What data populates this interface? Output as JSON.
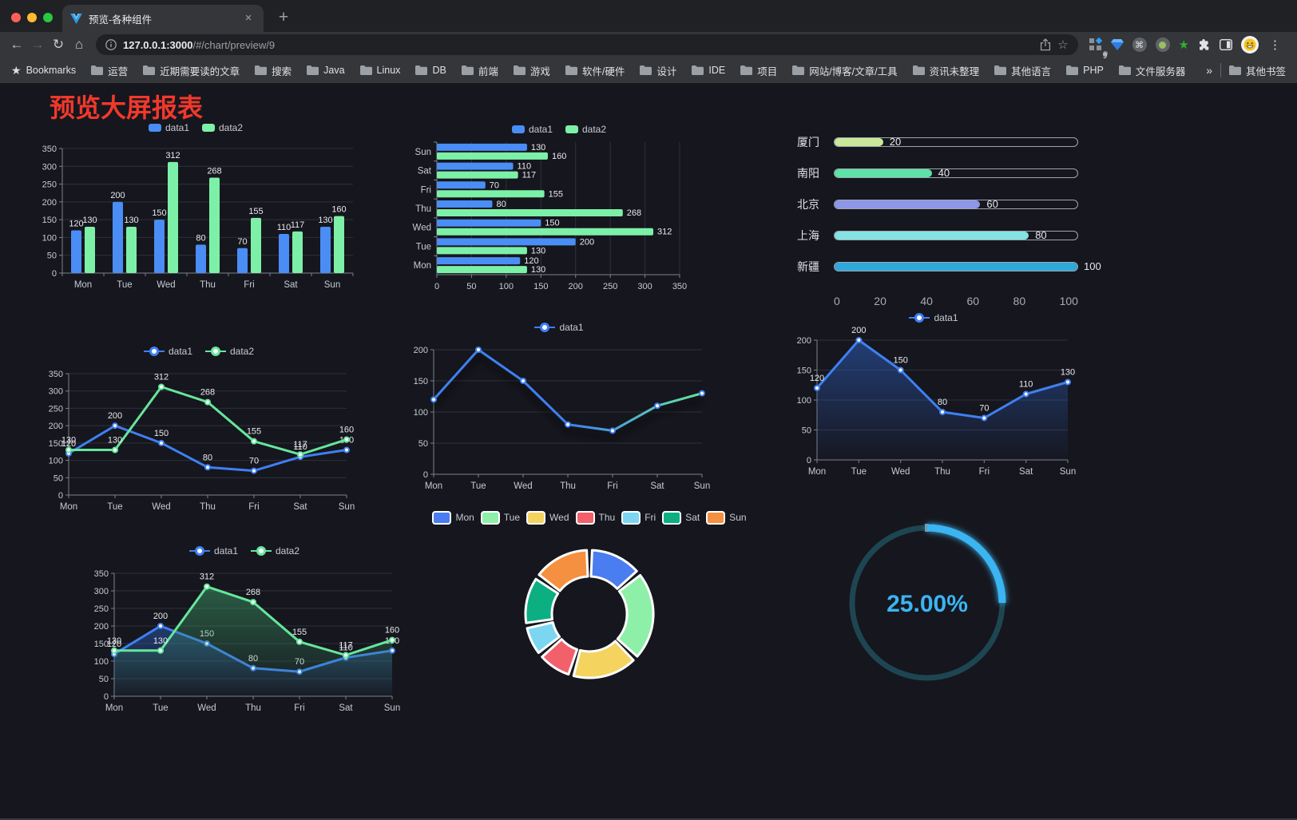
{
  "browser": {
    "traffic_lights": {
      "close": "#ff5f57",
      "minimize": "#febc2e",
      "zoom": "#28c840"
    },
    "tab": {
      "title": "预览-各种组件",
      "close_glyph": "×",
      "new_tab_glyph": "+"
    },
    "nav": {
      "back": "←",
      "forward": "→",
      "reload": "↻",
      "home": "⌂"
    },
    "omnibox": {
      "host": "127.0.0.1:3000",
      "path": "/#/chart/preview/9",
      "bookmark_star": "☆"
    },
    "extensions_badge": "9",
    "menu_glyph": "⋮",
    "command_glyph": "⌘",
    "green_star_glyph": "★",
    "bookmarks": {
      "label": "Bookmarks",
      "star_glyph": "★",
      "folders": [
        "运营",
        "近期需要读的文章",
        "搜索",
        "Java",
        "Linux",
        "DB",
        "前端",
        "游戏",
        "软件/硬件",
        "设计",
        "IDE",
        "项目",
        "网站/博客/文章/工具",
        "资讯未整理",
        "其他语言",
        "PHP",
        "文件服务器"
      ],
      "overflow_glyph": "»",
      "other_label": "其他书签"
    }
  },
  "page": {
    "title": "预览大屏报表"
  },
  "chart_data": [
    {
      "id": "bar-grouped",
      "type": "bar",
      "legend_position": "top",
      "categories": [
        "Mon",
        "Tue",
        "Wed",
        "Thu",
        "Fri",
        "Sat",
        "Sun"
      ],
      "series": [
        {
          "name": "data1",
          "color": "#4a8df5",
          "values": [
            120,
            200,
            150,
            80,
            70,
            110,
            130
          ]
        },
        {
          "name": "data2",
          "color": "#7df0a8",
          "values": [
            130,
            130,
            312,
            268,
            155,
            117,
            160
          ]
        }
      ],
      "ylim": [
        0,
        350
      ],
      "yticks": [
        0,
        50,
        100,
        150,
        200,
        250,
        300,
        350
      ],
      "value_labels": true,
      "grid": "horizontal"
    },
    {
      "id": "bar-horizontal",
      "type": "hbar",
      "legend_position": "top",
      "categories_top_to_bottom": [
        "Sun",
        "Sat",
        "Fri",
        "Thu",
        "Wed",
        "Tue",
        "Mon"
      ],
      "series": [
        {
          "name": "data1",
          "color": "#4a8df5",
          "values_top_to_bottom": [
            130,
            110,
            70,
            80,
            150,
            200,
            120
          ]
        },
        {
          "name": "data2",
          "color": "#7df0a8",
          "values_top_to_bottom": [
            160,
            117,
            155,
            268,
            312,
            130,
            130
          ]
        }
      ],
      "xlim": [
        0,
        350
      ],
      "xticks": [
        0,
        50,
        100,
        150,
        200,
        250,
        300,
        350
      ],
      "value_labels": true,
      "grid": "vertical"
    },
    {
      "id": "progress-bars",
      "type": "progress",
      "max": 100,
      "xticks": [
        0,
        20,
        40,
        60,
        80,
        100
      ],
      "items": [
        {
          "label": "厦门",
          "value": 20,
          "color": "#c9e89a"
        },
        {
          "label": "南阳",
          "value": 40,
          "color": "#5de3a6"
        },
        {
          "label": "北京",
          "value": 60,
          "color": "#8e96e8"
        },
        {
          "label": "上海",
          "value": 80,
          "color": "#85e3e1"
        },
        {
          "label": "新疆",
          "value": 100,
          "color": "#2ea9dc"
        }
      ]
    },
    {
      "id": "line-basic",
      "type": "line",
      "categories": [
        "Mon",
        "Tue",
        "Wed",
        "Thu",
        "Fri",
        "Sat",
        "Sun"
      ],
      "series": [
        {
          "name": "data1",
          "color": "#3e80f2",
          "values": [
            120,
            200,
            150,
            80,
            70,
            110,
            130
          ]
        },
        {
          "name": "data2",
          "color": "#66e69c",
          "values": [
            130,
            130,
            312,
            268,
            155,
            117,
            160
          ]
        }
      ],
      "ylim": [
        0,
        350
      ],
      "yticks": [
        0,
        50,
        100,
        150,
        200,
        250,
        300,
        350
      ],
      "value_labels": true
    },
    {
      "id": "line-gradient",
      "type": "line",
      "categories": [
        "Mon",
        "Tue",
        "Wed",
        "Thu",
        "Fri",
        "Sat",
        "Sun"
      ],
      "series": [
        {
          "name": "data1",
          "color": "#3e80f2",
          "gradient": [
            "#3e80f2",
            "#3e80f2",
            "#66e69c"
          ],
          "values": [
            120,
            200,
            150,
            80,
            70,
            110,
            130
          ]
        }
      ],
      "ylim": [
        0,
        200
      ],
      "yticks": [
        0,
        50,
        100,
        150,
        200
      ],
      "value_labels": false,
      "shadow": true
    },
    {
      "id": "line-area-single",
      "type": "line",
      "categories": [
        "Mon",
        "Tue",
        "Wed",
        "Thu",
        "Fri",
        "Sat",
        "Sun"
      ],
      "series": [
        {
          "name": "data1",
          "color": "#3e80f2",
          "values": [
            120,
            200,
            150,
            80,
            70,
            110,
            130
          ],
          "area": [
            "rgba(45,95,190,0.55)",
            "rgba(45,95,190,0.02)"
          ]
        }
      ],
      "ylim": [
        0,
        200
      ],
      "yticks": [
        0,
        50,
        100,
        150,
        200
      ],
      "value_labels": true
    },
    {
      "id": "line-area-double",
      "type": "line",
      "categories": [
        "Mon",
        "Tue",
        "Wed",
        "Thu",
        "Fri",
        "Sat",
        "Sun"
      ],
      "series": [
        {
          "name": "data1",
          "color": "#3e80f2",
          "values": [
            120,
            200,
            150,
            80,
            70,
            110,
            130
          ],
          "area": [
            "rgba(45,95,190,0.5)",
            "rgba(45,95,190,0.03)"
          ]
        },
        {
          "name": "data2",
          "color": "#66e69c",
          "values": [
            130,
            130,
            312,
            268,
            155,
            117,
            160
          ],
          "area": [
            "rgba(58,150,100,0.55)",
            "rgba(58,150,100,0.03)"
          ]
        }
      ],
      "ylim": [
        0,
        350
      ],
      "yticks": [
        0,
        50,
        100,
        150,
        200,
        250,
        300,
        350
      ],
      "value_labels": true
    },
    {
      "id": "pie-donut",
      "type": "pie",
      "inner_radius": 47,
      "outer_radius": 80,
      "items": [
        {
          "label": "Mon",
          "value": 120,
          "color": "#4a7df0"
        },
        {
          "label": "Tue",
          "value": 200,
          "color": "#8ef0a8"
        },
        {
          "label": "Wed",
          "value": 150,
          "color": "#f5d35f"
        },
        {
          "label": "Thu",
          "value": 80,
          "color": "#f2606c"
        },
        {
          "label": "Fri",
          "value": 70,
          "color": "#7cd6f2"
        },
        {
          "label": "Sat",
          "value": 110,
          "color": "#0caf82"
        },
        {
          "label": "Sun",
          "value": 130,
          "color": "#f59040"
        }
      ]
    },
    {
      "id": "gauge-ring",
      "type": "gauge",
      "value": 25,
      "display": "25.00%",
      "color": "#3ab5f2",
      "track_color": "#1d4652"
    }
  ]
}
